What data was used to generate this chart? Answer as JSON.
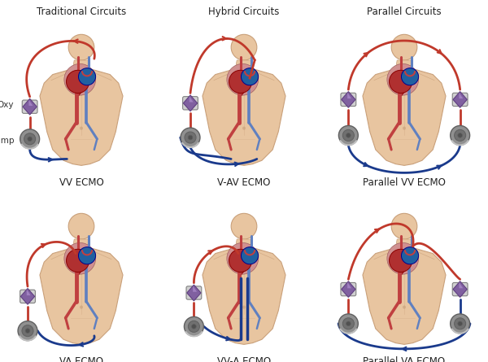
{
  "title_top_left": "Traditional Circuits",
  "title_top_center": "Hybrid Circuits",
  "title_top_right": "Parallel Circuits",
  "label_top_left": "VV ECMO",
  "label_top_center": "V-AV ECMO",
  "label_top_right": "Parallel VV ECMO",
  "label_bot_left": "VA ECMO",
  "label_bot_center": "VV-A ECMO",
  "label_bot_right": "Parallel VA ECMO",
  "oxy_label": "Oxy",
  "pump_label": "Pump",
  "bg_color": "#ffffff",
  "title_fontsize": 8.5,
  "label_fontsize": 8.5,
  "annot_fontsize": 7.5,
  "red": "#c0392b",
  "blue": "#1a3a8c",
  "figure_width": 6.0,
  "figure_height": 4.45,
  "dpi": 100,
  "skin_color": "#e8c5a0",
  "skin_edge": "#c9a07a",
  "heart_red": "#b03030",
  "heart_blue": "#2060a0",
  "vessel_red": "#c04040",
  "vessel_blue": "#6080c0",
  "oxy_purple": "#8060a0",
  "oxy_purple_dark": "#604080",
  "pump_silver": "#909090",
  "pump_dark": "#606060"
}
